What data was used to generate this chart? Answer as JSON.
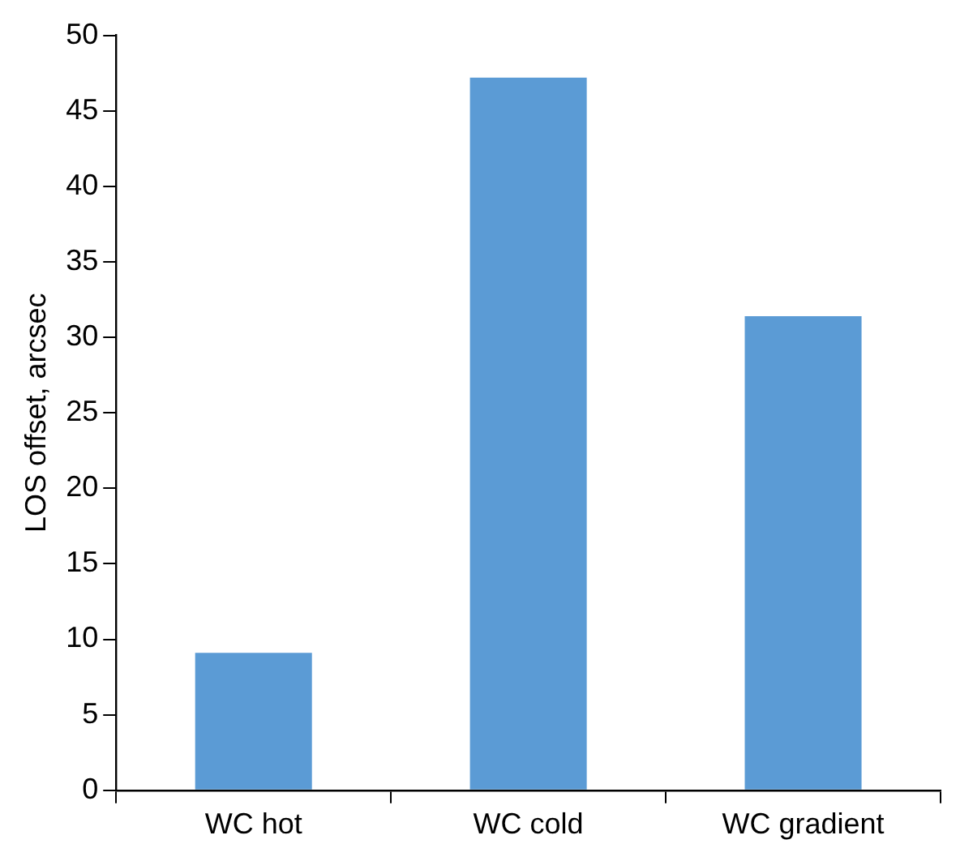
{
  "chart_data": {
    "type": "bar",
    "ylabel": "LOS offset, arcsec",
    "categories": [
      "WC hot",
      "WC cold",
      "WC gradient"
    ],
    "values": [
      9.1,
      47.2,
      31.4
    ],
    "color": "#5b9bd5",
    "ylim": [
      0,
      50
    ],
    "yticks": [
      0,
      5,
      10,
      15,
      20,
      25,
      30,
      35,
      40,
      45,
      50
    ],
    "grid": false,
    "legend": false
  }
}
